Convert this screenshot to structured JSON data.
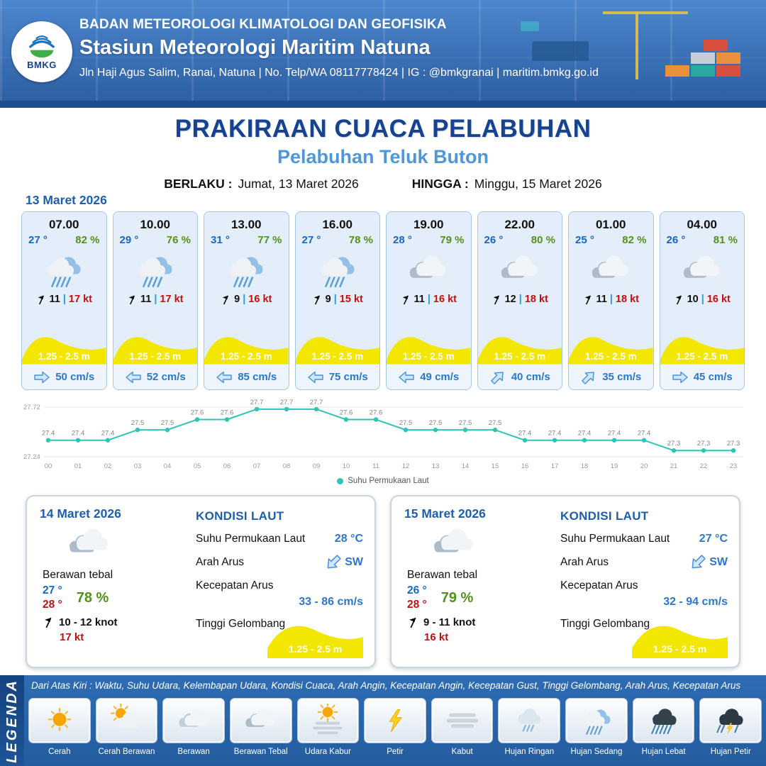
{
  "ui": {
    "pipe": "|"
  },
  "header": {
    "logo_text": "BMKG",
    "agency": "BADAN METEOROLOGI KLIMATOLOGI DAN GEOFISIKA",
    "station": "Stasiun Meteorologi Maritim Natuna",
    "contact": "Jln Haji Agus Salim, Ranai, Natuna | No. Telp/WA 08117778424 | IG : @bmkgranai | maritim.bmkg.go.id"
  },
  "title": {
    "main": "PRAKIRAAN CUACA PELABUHAN",
    "sub": "Pelabuhan Teluk Buton",
    "berlaku_label": "BERLAKU :",
    "berlaku_value": "Jumat, 13 Maret 2026",
    "hingga_label": "HINGGA :",
    "hingga_value": "Minggu, 15 Maret 2026"
  },
  "forecast_date": "13 Maret 2026",
  "hourly": [
    {
      "time": "07.00",
      "temp": "27 °",
      "rh": "82 %",
      "icon": "hujan-sedang",
      "wind": "11",
      "gust": "17 kt",
      "wave": "1.25 - 2.5 m",
      "current": "50 cm/s",
      "current_rot": 0
    },
    {
      "time": "10.00",
      "temp": "29 °",
      "rh": "76 %",
      "icon": "hujan-sedang",
      "wind": "11",
      "gust": "17 kt",
      "wave": "1.25 - 2.5 m",
      "current": "52 cm/s",
      "current_rot": 180
    },
    {
      "time": "13.00",
      "temp": "31 °",
      "rh": "77 %",
      "icon": "hujan-sedang",
      "wind": "9",
      "gust": "16 kt",
      "wave": "1.25 - 2.5 m",
      "current": "85 cm/s",
      "current_rot": 180
    },
    {
      "time": "16.00",
      "temp": "27 °",
      "rh": "78 %",
      "icon": "hujan-sedang",
      "wind": "9",
      "gust": "15 kt",
      "wave": "1.25 - 2.5 m",
      "current": "75 cm/s",
      "current_rot": 180
    },
    {
      "time": "19.00",
      "temp": "28 °",
      "rh": "79 %",
      "icon": "berawan-tebal",
      "wind": "11",
      "gust": "16 kt",
      "wave": "1.25 - 2.5 m",
      "current": "49 cm/s",
      "current_rot": 180
    },
    {
      "time": "22.00",
      "temp": "26 °",
      "rh": "80 %",
      "icon": "berawan-tebal",
      "wind": "12",
      "gust": "18 kt",
      "wave": "1.25 - 2.5 m",
      "current": "40 cm/s",
      "current_rot": -45
    },
    {
      "time": "01.00",
      "temp": "25 °",
      "rh": "82 %",
      "icon": "berawan-tebal",
      "wind": "11",
      "gust": "18 kt",
      "wave": "1.25 - 2.5 m",
      "current": "35 cm/s",
      "current_rot": -45
    },
    {
      "time": "04.00",
      "temp": "26 °",
      "rh": "81 %",
      "icon": "berawan-tebal",
      "wind": "10",
      "gust": "16 kt",
      "wave": "1.25 - 2.5 m",
      "current": "45 cm/s",
      "current_rot": 0
    }
  ],
  "chart_data": {
    "type": "line",
    "series_name": "Suhu Permukaan Laut",
    "x": [
      "00",
      "01",
      "02",
      "03",
      "04",
      "05",
      "06",
      "07",
      "08",
      "09",
      "10",
      "11",
      "12",
      "13",
      "14",
      "15",
      "16",
      "17",
      "18",
      "19",
      "20",
      "21",
      "22",
      "23"
    ],
    "values": [
      27.4,
      27.4,
      27.4,
      27.5,
      27.5,
      27.6,
      27.6,
      27.7,
      27.7,
      27.7,
      27.6,
      27.6,
      27.5,
      27.5,
      27.5,
      27.5,
      27.4,
      27.4,
      27.4,
      27.4,
      27.4,
      27.3,
      27.3,
      27.3
    ],
    "ylim": [
      27.24,
      27.72
    ],
    "yticks": [
      "27.72",
      "27.24"
    ],
    "xlabel": "",
    "ylabel": "",
    "line_color": "#2ec4b6",
    "legend_position": "bottom"
  },
  "daily": [
    {
      "date": "14 Maret 2026",
      "icon": "berawan-tebal",
      "condition": "Berawan tebal",
      "temp_min": "27 °",
      "temp_max": "28 °",
      "rh": "78 %",
      "wind": "10 - 12 knot",
      "gust": "17 kt",
      "sea": {
        "title": "KONDISI LAUT",
        "sst_label": "Suhu Permukaan Laut",
        "sst_value": "28 °C",
        "current_dir_label": "Arah Arus",
        "current_dir": "SW",
        "current_rot": 135,
        "current_speed_label": "Kecepatan Arus",
        "current_speed": "33 - 86 cm/s",
        "wave_label": "Tinggi Gelombang",
        "wave": "1.25 - 2.5 m"
      }
    },
    {
      "date": "15 Maret 2026",
      "icon": "berawan-tebal",
      "condition": "Berawan tebal",
      "temp_min": "26 °",
      "temp_max": "28 °",
      "rh": "79 %",
      "wind": "9 - 11 knot",
      "gust": "16 kt",
      "sea": {
        "title": "KONDISI LAUT",
        "sst_label": "Suhu Permukaan Laut",
        "sst_value": "27 °C",
        "current_dir_label": "Arah Arus",
        "current_dir": "SW",
        "current_rot": 135,
        "current_speed_label": "Kecepatan Arus",
        "current_speed": "32 - 94 cm/s",
        "wave_label": "Tinggi Gelombang",
        "wave": "1.25 - 2.5 m"
      }
    }
  ],
  "legend": {
    "sidebar": "LEGENDA",
    "description": "Dari Atas Kiri : Waktu, Suhu Udara, Kelembapan Udara, Kondisi Cuaca, Arah Angin, Kecepatan Angin, Kecepatan Gust, Tinggi Gelombang, Arah Arus, Kecepatan Arus",
    "items": [
      {
        "label": "Cerah",
        "icon": "cerah"
      },
      {
        "label": "Cerah Berawan",
        "icon": "cerah-berawan"
      },
      {
        "label": "Berawan",
        "icon": "berawan"
      },
      {
        "label": "Berawan Tebal",
        "icon": "berawan-tebal"
      },
      {
        "label": "Udara Kabur",
        "icon": "udara-kabur"
      },
      {
        "label": "Petir",
        "icon": "petir"
      },
      {
        "label": "Kabut",
        "icon": "kabut"
      },
      {
        "label": "Hujan Ringan",
        "icon": "hujan-ringan"
      },
      {
        "label": "Hujan Sedang",
        "icon": "hujan-sedang"
      },
      {
        "label": "Hujan Lebat",
        "icon": "hujan-lebat"
      },
      {
        "label": "Hujan Petir",
        "icon": "hujan-petir"
      }
    ]
  }
}
